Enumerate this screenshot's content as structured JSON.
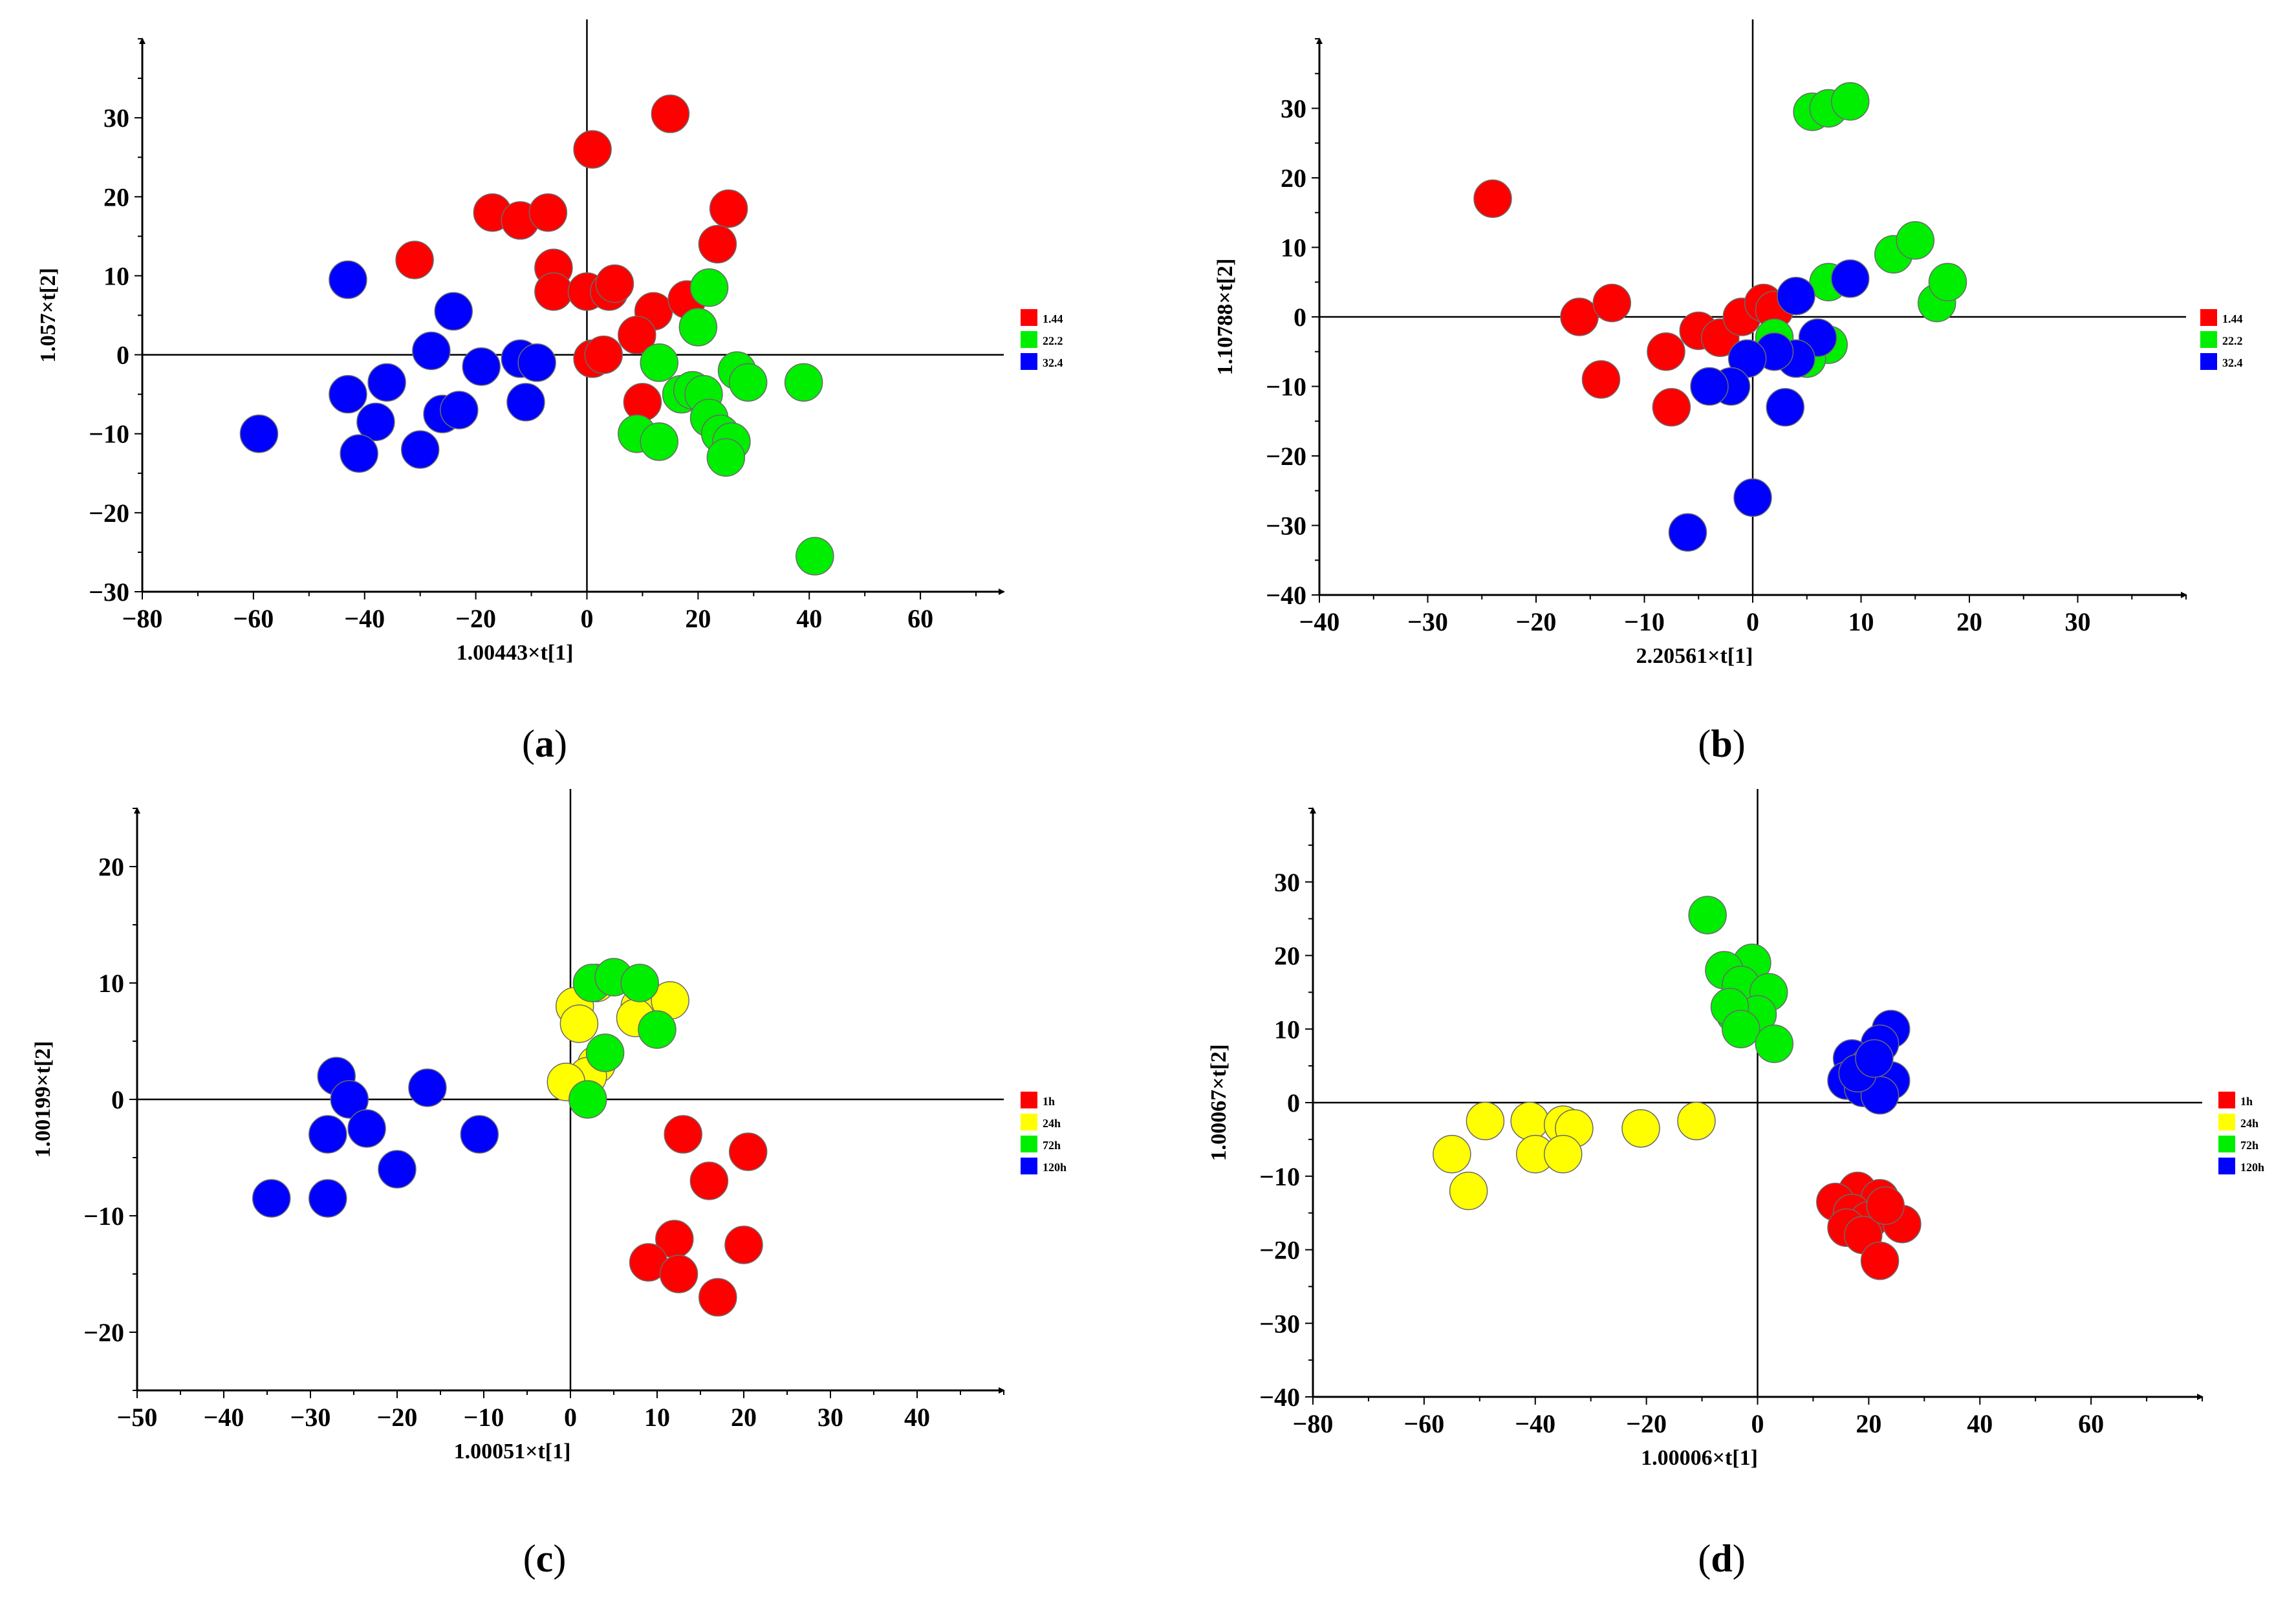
{
  "chart_data": [
    {
      "type": "scatter",
      "panel": "(a)",
      "panel_label": "a",
      "xlabel": "1.00443×t[1]",
      "ylabel": "1.057×t[2]",
      "xlim": [
        -80,
        75
      ],
      "ylim": [
        -30,
        40
      ],
      "xticks": [
        -80,
        -60,
        -40,
        -20,
        0,
        20,
        40,
        60
      ],
      "yticks": [
        -30,
        -20,
        -10,
        0,
        10,
        20,
        30
      ],
      "legend_position": "right",
      "colors": {
        "1.44": "#ff0000",
        "22.2": "#00ee00",
        "32.4": "#0000ff"
      },
      "series": [
        {
          "name": "1.44",
          "color": "#ff0000",
          "points": [
            [
              15,
              30.5
            ],
            [
              1,
              26
            ],
            [
              -17,
              18
            ],
            [
              -12,
              17
            ],
            [
              -7,
              18
            ],
            [
              25.5,
              18.5
            ],
            [
              23.5,
              14
            ],
            [
              -31,
              12
            ],
            [
              -6,
              11
            ],
            [
              -6,
              8
            ],
            [
              0,
              8
            ],
            [
              4,
              8
            ],
            [
              5,
              9
            ],
            [
              12,
              5.5
            ],
            [
              18,
              7
            ],
            [
              9,
              2.5
            ],
            [
              1,
              -0.5
            ],
            [
              3,
              0
            ],
            [
              10,
              -6
            ]
          ]
        },
        {
          "name": "22.2",
          "color": "#00ee00",
          "points": [
            [
              22,
              8.5
            ],
            [
              20,
              3.5
            ],
            [
              13,
              -1
            ],
            [
              17,
              -5
            ],
            [
              19,
              -4.5
            ],
            [
              21,
              -5
            ],
            [
              27,
              -2
            ],
            [
              29,
              -3.5
            ],
            [
              39,
              -3.5
            ],
            [
              22,
              -8
            ],
            [
              24,
              -10
            ],
            [
              9,
              -10
            ],
            [
              13,
              -11
            ],
            [
              26,
              -11
            ],
            [
              25,
              -13
            ],
            [
              41,
              -25.5
            ]
          ]
        },
        {
          "name": "32.4",
          "color": "#0000ff",
          "points": [
            [
              -43,
              9.5
            ],
            [
              -24,
              5.5
            ],
            [
              -28,
              0.5
            ],
            [
              -19,
              -1.5
            ],
            [
              -12,
              -0.5
            ],
            [
              -9,
              -1
            ],
            [
              -36,
              -3.5
            ],
            [
              -43,
              -5
            ],
            [
              -11,
              -6
            ],
            [
              -26,
              -7.5
            ],
            [
              -23,
              -7
            ],
            [
              -38,
              -8.5
            ],
            [
              -59,
              -10
            ],
            [
              -41,
              -12.5
            ],
            [
              -30,
              -12
            ]
          ]
        }
      ]
    },
    {
      "type": "scatter",
      "panel": "(b)",
      "panel_label": "b",
      "xlabel": "2.20561×t[1]",
      "ylabel": "1.10788×t[2]",
      "xlim": [
        -40,
        40
      ],
      "ylim": [
        -40,
        40
      ],
      "xticks": [
        -40,
        -30,
        -20,
        -10,
        0,
        10,
        20,
        30
      ],
      "yticks": [
        -40,
        -30,
        -20,
        -10,
        0,
        10,
        20,
        30
      ],
      "legend_position": "right",
      "colors": {
        "1.44": "#ff0000",
        "22.2": "#00ee00",
        "32.4": "#0000ff"
      },
      "series": [
        {
          "name": "1.44",
          "color": "#ff0000",
          "points": [
            [
              -24,
              17
            ],
            [
              -16,
              0
            ],
            [
              -13,
              2
            ],
            [
              -8,
              -5
            ],
            [
              -5,
              -2
            ],
            [
              -3,
              -3
            ],
            [
              -1,
              0
            ],
            [
              1,
              2
            ],
            [
              2,
              1
            ],
            [
              -14,
              -9
            ],
            [
              -7.5,
              -13
            ]
          ]
        },
        {
          "name": "22.2",
          "color": "#00ee00",
          "points": [
            [
              5.5,
              29.5
            ],
            [
              7,
              30
            ],
            [
              9,
              31
            ],
            [
              13,
              9
            ],
            [
              15,
              11
            ],
            [
              17,
              2
            ],
            [
              18,
              5
            ],
            [
              7,
              5
            ],
            [
              7,
              -4
            ],
            [
              5,
              -6
            ],
            [
              2,
              -3
            ]
          ]
        },
        {
          "name": "32.4",
          "color": "#0000ff",
          "points": [
            [
              9,
              5.5
            ],
            [
              4,
              3
            ],
            [
              6,
              -3
            ],
            [
              4,
              -6
            ],
            [
              2,
              -5
            ],
            [
              -0.5,
              -6
            ],
            [
              -2,
              -10
            ],
            [
              -4,
              -10
            ],
            [
              3,
              -13
            ],
            [
              0,
              -26
            ],
            [
              -6,
              -31
            ]
          ]
        }
      ]
    },
    {
      "type": "scatter",
      "panel": "(c)",
      "panel_label": "c",
      "xlabel": "1.00051×t[1]",
      "ylabel": "1.00199×t[2]",
      "xlim": [
        -50,
        50
      ],
      "ylim": [
        -25,
        25
      ],
      "xticks": [
        -50,
        -40,
        -30,
        -20,
        -10,
        0,
        10,
        20,
        30,
        40
      ],
      "yticks": [
        -20,
        -10,
        0,
        10,
        20
      ],
      "legend_position": "right",
      "colors": {
        "1h": "#ff0000",
        "24h": "#ffff00",
        "72h": "#00ee00",
        "120h": "#0000ff"
      },
      "series": [
        {
          "name": "1h",
          "color": "#ff0000",
          "points": [
            [
              13,
              -3
            ],
            [
              20.5,
              -4.5
            ],
            [
              16,
              -7
            ],
            [
              12,
              -12
            ],
            [
              20,
              -12.5
            ],
            [
              9,
              -14
            ],
            [
              12.5,
              -15
            ],
            [
              17,
              -17
            ]
          ]
        },
        {
          "name": "24h",
          "color": "#ffff00",
          "points": [
            [
              0.5,
              8
            ],
            [
              1,
              6.5
            ],
            [
              3,
              10
            ],
            [
              8,
              8
            ],
            [
              11.5,
              8.5
            ],
            [
              7.5,
              7
            ],
            [
              3,
              3
            ],
            [
              2,
              2
            ],
            [
              -0.5,
              1.5
            ]
          ]
        },
        {
          "name": "72h",
          "color": "#00ee00",
          "points": [
            [
              2.5,
              10
            ],
            [
              5,
              10.5
            ],
            [
              8,
              10
            ],
            [
              10,
              6
            ],
            [
              4,
              4
            ],
            [
              2,
              0
            ]
          ]
        },
        {
          "name": "120h",
          "color": "#0000ff",
          "points": [
            [
              -27,
              2
            ],
            [
              -25.5,
              0
            ],
            [
              -16.5,
              1
            ],
            [
              -23.5,
              -2.5
            ],
            [
              -28,
              -3
            ],
            [
              -10.5,
              -3
            ],
            [
              -20,
              -6
            ],
            [
              -34.5,
              -8.5
            ],
            [
              -28,
              -8.5
            ]
          ]
        }
      ]
    },
    {
      "type": "scatter",
      "panel": "(d)",
      "panel_label": "d",
      "xlabel": "1.00006×t[1]",
      "ylabel": "1.00067×t[2]",
      "xlim": [
        -80,
        80
      ],
      "ylim": [
        -40,
        40
      ],
      "xticks": [
        -80,
        -60,
        -40,
        -20,
        0,
        20,
        40,
        60
      ],
      "yticks": [
        -40,
        -30,
        -20,
        -10,
        0,
        10,
        20,
        30
      ],
      "legend_position": "right",
      "colors": {
        "1h": "#ff0000",
        "24h": "#ffff00",
        "72h": "#00ee00",
        "120h": "#0000ff"
      },
      "series": [
        {
          "name": "1h",
          "color": "#ff0000",
          "points": [
            [
              18,
              -12
            ],
            [
              22,
              -13
            ],
            [
              14,
              -13.5
            ],
            [
              17,
              -15
            ],
            [
              20,
              -16
            ],
            [
              26,
              -16.5
            ],
            [
              16,
              -17
            ],
            [
              19,
              -18
            ],
            [
              22,
              -21.5
            ],
            [
              23,
              -14
            ]
          ]
        },
        {
          "name": "24h",
          "color": "#ffff00",
          "points": [
            [
              -49,
              -2.5
            ],
            [
              -41,
              -2.5
            ],
            [
              -35,
              -3
            ],
            [
              -33,
              -3.5
            ],
            [
              -21,
              -3.5
            ],
            [
              -11,
              -2.5
            ],
            [
              -55,
              -7
            ],
            [
              -40,
              -7
            ],
            [
              -35,
              -7
            ],
            [
              -52,
              -12
            ]
          ]
        },
        {
          "name": "72h",
          "color": "#00ee00",
          "points": [
            [
              -9,
              25.5
            ],
            [
              -1,
              19
            ],
            [
              -6,
              18
            ],
            [
              -3,
              16
            ],
            [
              2,
              15
            ],
            [
              -4,
              12
            ],
            [
              0,
              12
            ],
            [
              -5,
              13
            ],
            [
              -3,
              10
            ],
            [
              3,
              8
            ]
          ]
        },
        {
          "name": "120h",
          "color": "#0000ff",
          "points": [
            [
              24,
              10
            ],
            [
              22,
              8
            ],
            [
              17,
              6
            ],
            [
              20,
              5
            ],
            [
              24,
              3
            ],
            [
              16,
              3
            ],
            [
              19,
              2
            ],
            [
              22,
              1
            ],
            [
              18,
              4
            ],
            [
              21,
              6
            ]
          ]
        }
      ]
    }
  ]
}
